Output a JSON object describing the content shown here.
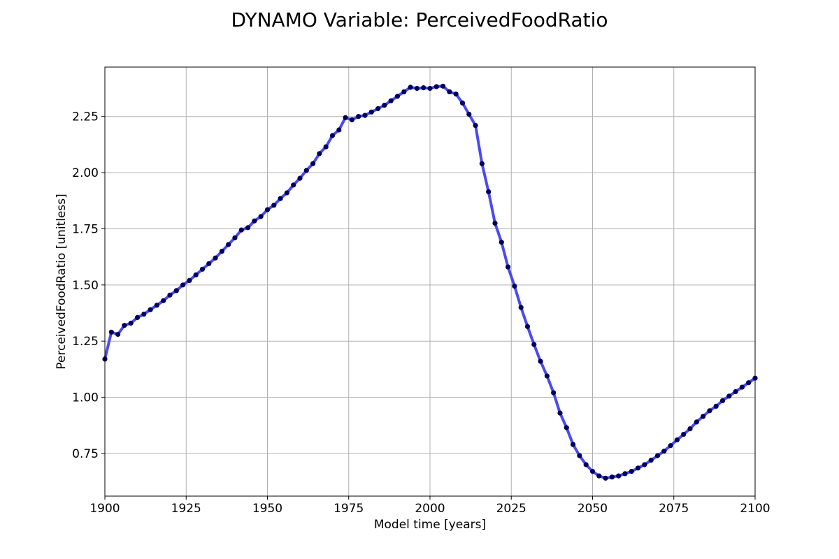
{
  "chart_data": {
    "type": "line",
    "title": "DYNAMO Variable: PerceivedFoodRatio",
    "xlabel": "Model time [years]",
    "ylabel": "PerceivedFoodRatio [unitless]",
    "xlim": [
      1900,
      2100
    ],
    "ylim": [
      0.56,
      2.47
    ],
    "xticks": [
      1900,
      1925,
      1950,
      1975,
      2000,
      2025,
      2050,
      2075,
      2100
    ],
    "xtick_labels": [
      "1900",
      "1925",
      "1950",
      "1975",
      "2000",
      "2025",
      "2050",
      "2075",
      "2100"
    ],
    "yticks": [
      0.75,
      1.0,
      1.25,
      1.5,
      1.75,
      2.0,
      2.25
    ],
    "ytick_labels": [
      "0.75",
      "1.00",
      "1.25",
      "1.50",
      "1.75",
      "2.00",
      "2.25"
    ],
    "grid": true,
    "series": [
      {
        "line_color": "#4b4bf0",
        "marker_color": "#00005a",
        "x": [
          1900,
          1902,
          1904,
          1906,
          1908,
          1910,
          1912,
          1914,
          1916,
          1918,
          1920,
          1922,
          1924,
          1926,
          1928,
          1930,
          1932,
          1934,
          1936,
          1938,
          1940,
          1942,
          1944,
          1946,
          1948,
          1950,
          1952,
          1954,
          1956,
          1958,
          1960,
          1962,
          1964,
          1966,
          1968,
          1970,
          1972,
          1974,
          1976,
          1978,
          1980,
          1982,
          1984,
          1986,
          1988,
          1990,
          1992,
          1994,
          1996,
          1998,
          2000,
          2002,
          2004,
          2006,
          2008,
          2010,
          2012,
          2014,
          2016,
          2018,
          2020,
          2022,
          2024,
          2026,
          2028,
          2030,
          2032,
          2034,
          2036,
          2038,
          2040,
          2042,
          2044,
          2046,
          2048,
          2050,
          2052,
          2054,
          2056,
          2058,
          2060,
          2062,
          2064,
          2066,
          2068,
          2070,
          2072,
          2074,
          2076,
          2078,
          2080,
          2082,
          2084,
          2086,
          2088,
          2090,
          2092,
          2094,
          2096,
          2098,
          2100
        ],
        "y": [
          1.17,
          1.29,
          1.28,
          1.32,
          1.33,
          1.355,
          1.37,
          1.39,
          1.41,
          1.43,
          1.455,
          1.475,
          1.5,
          1.52,
          1.545,
          1.57,
          1.595,
          1.62,
          1.65,
          1.68,
          1.71,
          1.745,
          1.755,
          1.785,
          1.805,
          1.835,
          1.855,
          1.885,
          1.91,
          1.945,
          1.975,
          2.01,
          2.04,
          2.085,
          2.115,
          2.165,
          2.19,
          2.245,
          2.235,
          2.25,
          2.255,
          2.27,
          2.285,
          2.3,
          2.32,
          2.34,
          2.36,
          2.38,
          2.375,
          2.378,
          2.375,
          2.383,
          2.385,
          2.36,
          2.35,
          2.31,
          2.26,
          2.21,
          2.04,
          1.915,
          1.775,
          1.69,
          1.58,
          1.495,
          1.4,
          1.315,
          1.235,
          1.16,
          1.095,
          1.02,
          0.93,
          0.865,
          0.79,
          0.74,
          0.7,
          0.67,
          0.65,
          0.64,
          0.645,
          0.65,
          0.66,
          0.67,
          0.685,
          0.7,
          0.72,
          0.74,
          0.76,
          0.785,
          0.81,
          0.835,
          0.86,
          0.89,
          0.915,
          0.94,
          0.96,
          0.985,
          1.005,
          1.025,
          1.045,
          1.065,
          1.085
        ]
      }
    ]
  }
}
